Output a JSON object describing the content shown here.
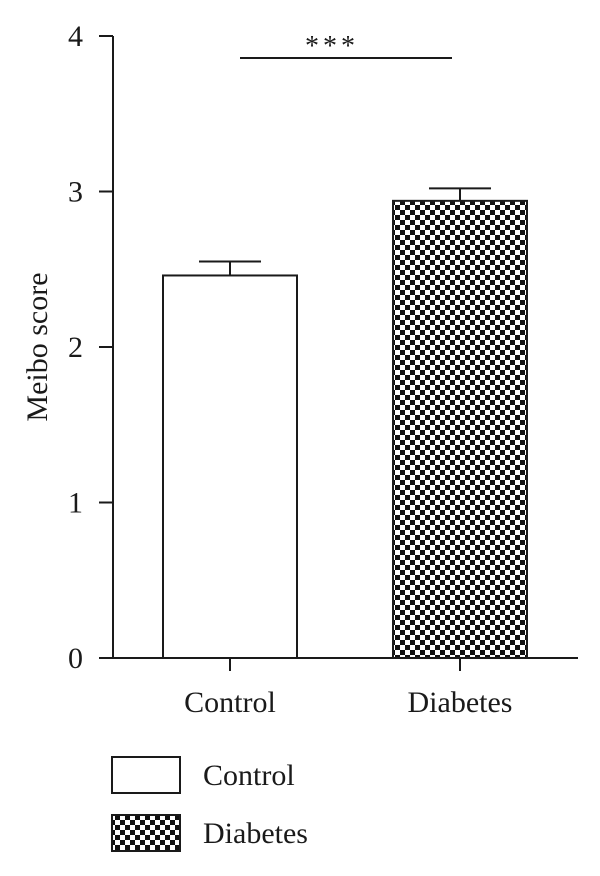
{
  "chart_data": {
    "type": "bar",
    "categories": [
      "Control",
      "Diabetes"
    ],
    "values": [
      2.46,
      2.94
    ],
    "errors": [
      0.09,
      0.08
    ],
    "ylabel": "Meibo score",
    "xlabel": "",
    "ylim": [
      0,
      4
    ],
    "yticks": [
      "0",
      "1",
      "2",
      "3",
      "4"
    ],
    "grid": false,
    "legend_position": "bottom-left",
    "series": [
      {
        "name": "Control",
        "fill": "white",
        "color": "#ffffff"
      },
      {
        "name": "Diabetes",
        "fill": "checkerboard",
        "color": "#000000"
      }
    ],
    "annotations": [
      {
        "text": "***",
        "from": "Control",
        "to": "Diabetes"
      }
    ]
  }
}
